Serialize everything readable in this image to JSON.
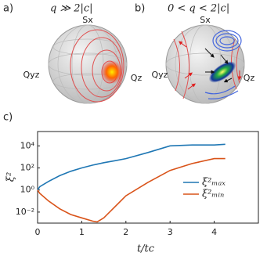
{
  "panels": [
    {
      "label": "a)",
      "title": "q ≫ 2|c|",
      "axis_top": "Sx",
      "axis_left": "Qyz",
      "axis_right": "Qz"
    },
    {
      "label": "b)",
      "title": "0 < q < 2|c|",
      "axis_top": "Sx",
      "axis_left": "Qyz",
      "axis_right": "Qz"
    }
  ],
  "chart_data": {
    "type": "line",
    "label": "c)",
    "x_label": "t/tc",
    "y_label": "ξ²",
    "x": [
      0,
      0.05,
      0.25,
      0.5,
      0.75,
      1,
      1.25,
      1.35,
      1.5,
      1.75,
      2,
      2.5,
      3,
      3.5,
      4,
      4.25
    ],
    "series": [
      {
        "name": "ξ²ₘₐₓ",
        "color": "#1f77b4",
        "values": [
          1,
          2,
          6,
          20,
          50,
          100,
          180,
          220,
          300,
          450,
          700,
          2500,
          10000,
          12000,
          12000,
          14000
        ]
      },
      {
        "name": "ξ²ₘᵢₙ",
        "color": "#d95319",
        "values": [
          1,
          0.5,
          0.1,
          0.02,
          0.006,
          0.003,
          0.0015,
          0.0013,
          0.003,
          0.03,
          0.3,
          5,
          60,
          250,
          700,
          700
        ]
      }
    ],
    "xlim": [
      0,
      5
    ],
    "xticks": [
      0,
      1,
      2,
      3,
      4
    ],
    "ylim": [
      0.001,
      200000
    ],
    "log_y": true,
    "yticks": [
      {
        "value": 0.01,
        "label": "10⁻²"
      },
      {
        "value": 1,
        "label": "10⁰"
      },
      {
        "value": 100,
        "label": "10²"
      },
      {
        "value": 10000,
        "label": "10⁴"
      }
    ],
    "legend": "lower-right"
  }
}
